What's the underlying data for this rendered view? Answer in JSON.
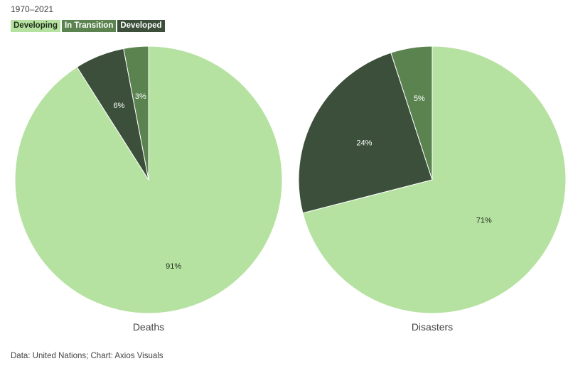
{
  "header": {
    "subtitle": "1970–2021"
  },
  "legend": {
    "items": [
      {
        "label": "Developing",
        "color": "#b6e2a1"
      },
      {
        "label": "In Transition",
        "color": "#5a834f"
      },
      {
        "label": "Developed",
        "color": "#3b4f3a"
      }
    ]
  },
  "footer": {
    "source": "Data: United Nations; Chart: Axios Visuals"
  },
  "chart_data": [
    {
      "type": "pie",
      "title": "Deaths",
      "categories": [
        "Developing",
        "Developed",
        "In Transition"
      ],
      "values": [
        91,
        6,
        3
      ],
      "labels": [
        "91%",
        "6%",
        "3%"
      ],
      "colors": [
        "#b6e2a1",
        "#3b4f3a",
        "#5a834f"
      ],
      "label_colors": [
        "#1f2d1a",
        "#ffffff",
        "#ffffff"
      ]
    },
    {
      "type": "pie",
      "title": "Disasters",
      "categories": [
        "Developing",
        "Developed",
        "In Transition"
      ],
      "values": [
        71,
        24,
        5
      ],
      "labels": [
        "71%",
        "24%",
        "5%"
      ],
      "colors": [
        "#b6e2a1",
        "#3b4f3a",
        "#5a834f"
      ],
      "label_colors": [
        "#1f2d1a",
        "#ffffff",
        "#ffffff"
      ]
    }
  ]
}
